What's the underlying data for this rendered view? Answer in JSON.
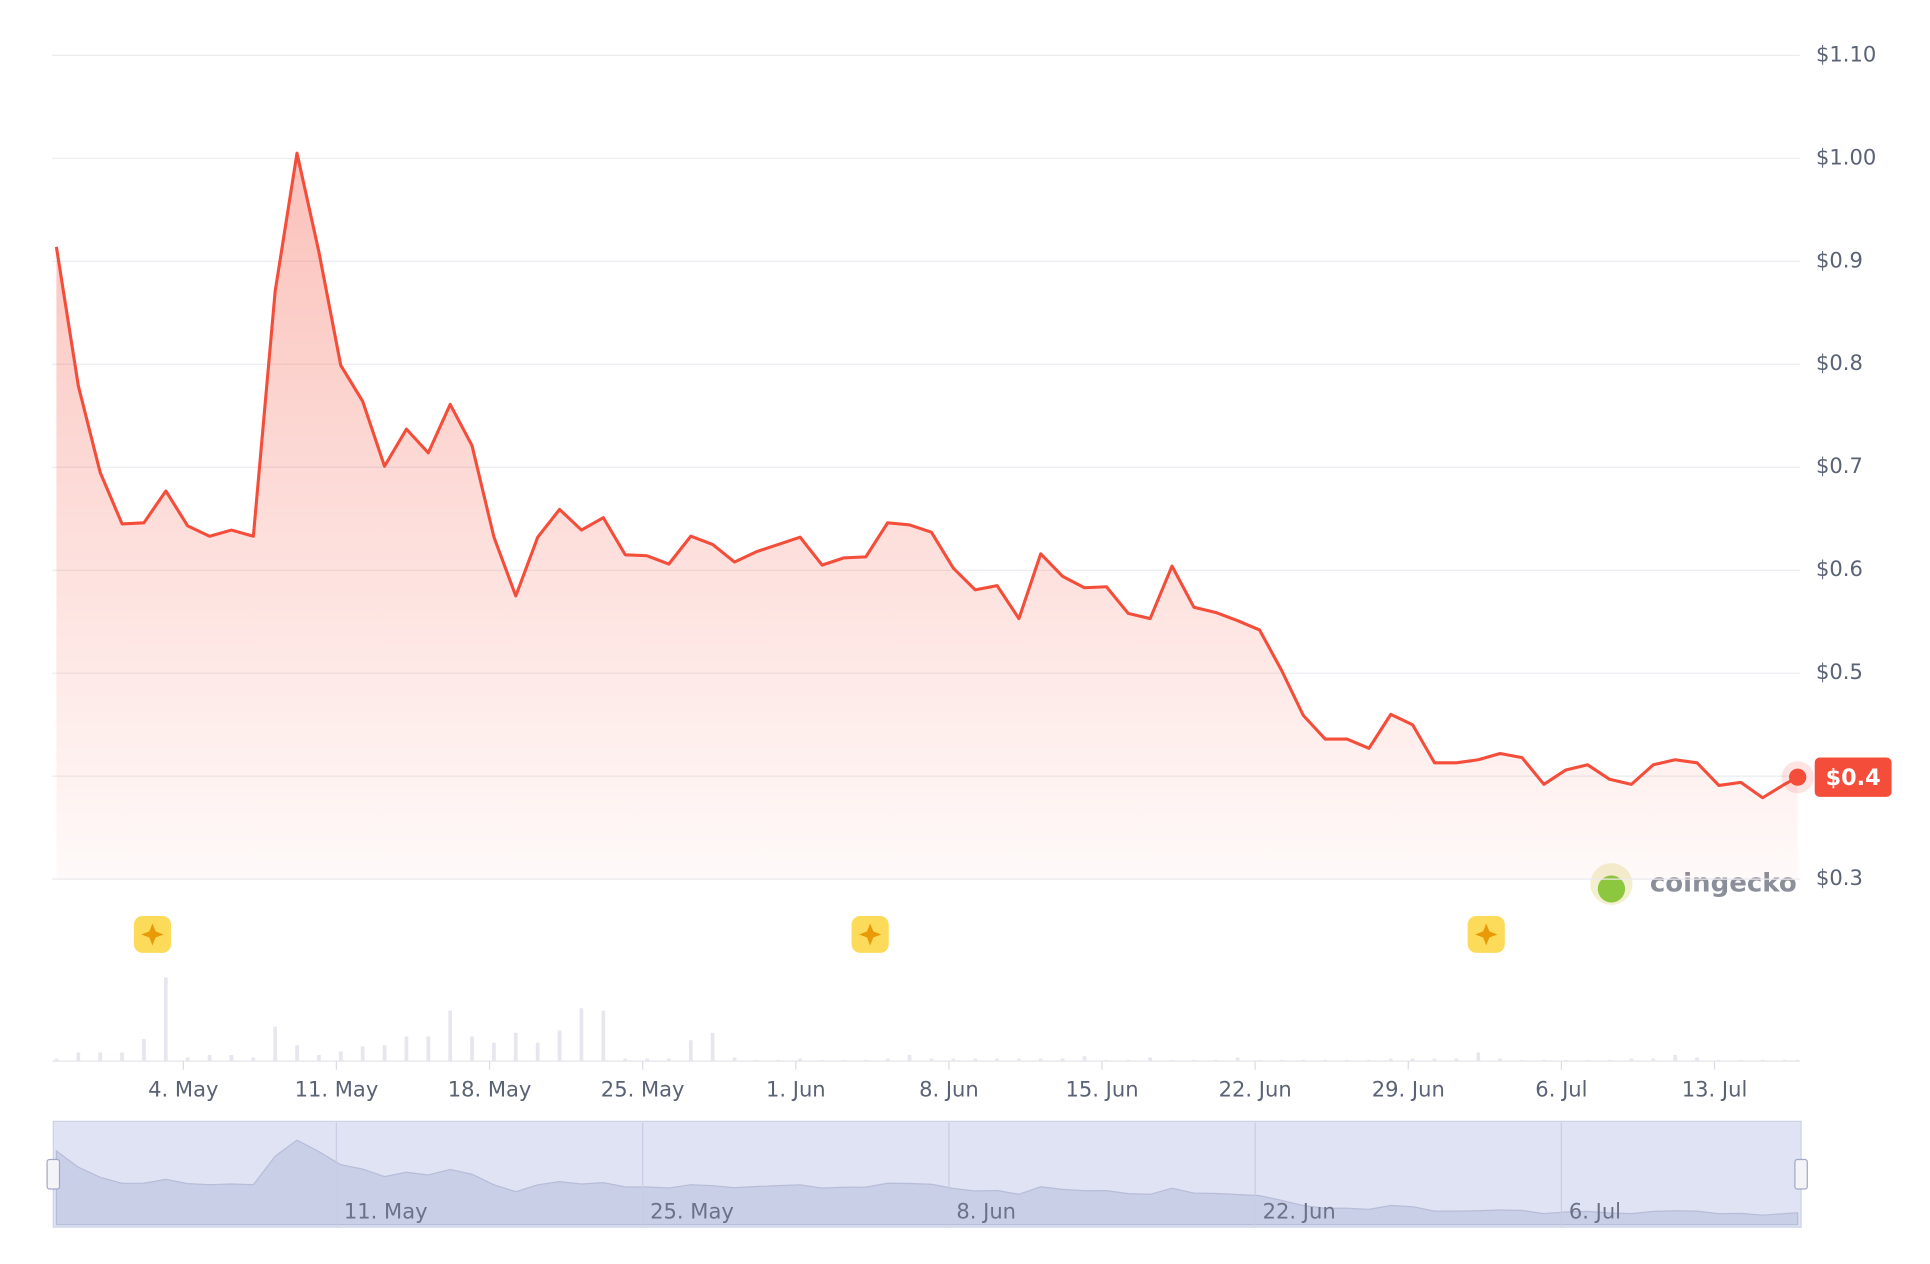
{
  "chart_data": {
    "type": "line",
    "color": "#f44d3a",
    "x": [
      0,
      1,
      2,
      3,
      4,
      5,
      6,
      7,
      8,
      9,
      10,
      11,
      12,
      13,
      14,
      15,
      16,
      17,
      18,
      19,
      20,
      21,
      22,
      23,
      24,
      25,
      26,
      27,
      28,
      29,
      30,
      31,
      32,
      33,
      34,
      35,
      36,
      37,
      38,
      39,
      40,
      41,
      42,
      43,
      44,
      45,
      46,
      47,
      48,
      49,
      50,
      51,
      52,
      53,
      54,
      55,
      56,
      57,
      58,
      59,
      60,
      61,
      62,
      63,
      64,
      65,
      66,
      67,
      68,
      69,
      70,
      71,
      72,
      73,
      74,
      75,
      76,
      77,
      78,
      79,
      79.6
    ],
    "values": [
      0.914,
      0.779,
      0.695,
      0.645,
      0.646,
      0.677,
      0.643,
      0.633,
      0.639,
      0.633,
      0.871,
      1.005,
      0.909,
      0.799,
      0.764,
      0.701,
      0.737,
      0.714,
      0.761,
      0.721,
      0.632,
      0.575,
      0.632,
      0.659,
      0.639,
      0.651,
      0.615,
      0.614,
      0.606,
      0.633,
      0.625,
      0.608,
      0.618,
      0.625,
      0.632,
      0.605,
      0.612,
      0.613,
      0.646,
      0.644,
      0.637,
      0.602,
      0.581,
      0.585,
      0.553,
      0.616,
      0.594,
      0.583,
      0.584,
      0.558,
      0.553,
      0.604,
      0.564,
      0.559,
      0.551,
      0.542,
      0.503,
      0.459,
      0.436,
      0.436,
      0.427,
      0.46,
      0.45,
      0.413,
      0.413,
      0.416,
      0.422,
      0.418,
      0.392,
      0.406,
      0.411,
      0.397,
      0.392,
      0.411,
      0.416,
      0.413,
      0.391,
      0.394,
      0.379,
      0.392,
      0.399
    ],
    "value_labels": [
      null,
      null,
      null,
      null,
      null,
      null,
      null,
      null,
      null,
      null,
      null,
      null,
      null,
      null,
      null,
      null,
      null,
      null,
      null,
      null,
      null,
      null,
      null,
      null,
      null,
      null,
      null,
      null,
      null,
      null,
      null,
      null,
      null,
      null,
      null,
      null,
      null,
      null,
      null,
      null,
      null,
      null,
      null,
      null,
      null,
      null,
      null,
      null,
      null,
      null,
      null,
      null,
      null,
      null,
      null,
      null,
      null,
      null,
      null,
      null,
      null,
      null,
      null,
      null,
      null,
      null,
      null,
      null,
      null,
      null,
      null,
      null,
      null,
      null,
      null,
      null,
      null,
      null,
      null,
      null,
      "$0.4"
    ],
    "volume": [
      2,
      7,
      7,
      7,
      18,
      68,
      3,
      5,
      5,
      3,
      28,
      13,
      5,
      8,
      12,
      13,
      20,
      20,
      41,
      20,
      15,
      23,
      15,
      25,
      43,
      41,
      2,
      2,
      2,
      17,
      23,
      3,
      1,
      1,
      2,
      1,
      1,
      1,
      2,
      5,
      2,
      2,
      2,
      2,
      2,
      2,
      2,
      4,
      1,
      1,
      3,
      1,
      1,
      1,
      3,
      1,
      1,
      1,
      1,
      1,
      1,
      2,
      2,
      2,
      2,
      7,
      2,
      1,
      1,
      1,
      1,
      1,
      2,
      2,
      5,
      3,
      1,
      1,
      1,
      1,
      1
    ],
    "volume_color": "#e6e6ef",
    "xlim": [
      -0.2,
      79.7
    ],
    "xticks": [
      {
        "value": 5.8,
        "label": "4. May"
      },
      {
        "value": 12.8,
        "label": "11. May"
      },
      {
        "value": 19.8,
        "label": "18. May"
      },
      {
        "value": 26.8,
        "label": "25. May"
      },
      {
        "value": 33.8,
        "label": "1. Jun"
      },
      {
        "value": 40.8,
        "label": "8. Jun"
      },
      {
        "value": 47.8,
        "label": "15. Jun"
      },
      {
        "value": 54.8,
        "label": "22. Jun"
      },
      {
        "value": 61.8,
        "label": "29. Jun"
      },
      {
        "value": 68.8,
        "label": "6. Jul"
      },
      {
        "value": 75.8,
        "label": "13. Jul"
      }
    ],
    "ylim": [
      0.3,
      1.1
    ],
    "yticks": [
      {
        "value": 1.1,
        "label": "$1.10"
      },
      {
        "value": 1.0,
        "label": "$1.00"
      },
      {
        "value": 0.9,
        "label": "$0.9"
      },
      {
        "value": 0.8,
        "label": "$0.8"
      },
      {
        "value": 0.7,
        "label": "$0.7"
      },
      {
        "value": 0.6,
        "label": "$0.6"
      },
      {
        "value": 0.5,
        "label": "$0.5"
      },
      {
        "value": 0.4,
        "label": "$0.4"
      },
      {
        "value": 0.3,
        "label": "$0.3"
      }
    ],
    "grid": true,
    "watermark": "coingecko",
    "navigator": {
      "xticks": [
        {
          "value": 12.8,
          "label": "11. May"
        },
        {
          "value": 26.8,
          "label": "25. May"
        },
        {
          "value": 40.8,
          "label": "8. Jun"
        },
        {
          "value": 54.8,
          "label": "22. Jun"
        },
        {
          "value": 68.8,
          "label": "6. Jul"
        }
      ]
    }
  }
}
